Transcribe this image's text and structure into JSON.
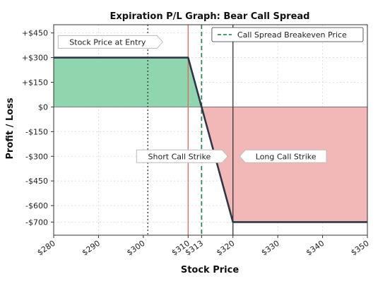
{
  "chart_data": {
    "type": "line",
    "title": "Expiration P/L Graph: Bear Call Spread",
    "xlabel": "Stock Price",
    "ylabel": "Profit / Loss",
    "xlim": [
      280,
      350
    ],
    "ylim": [
      -780,
      500
    ],
    "x_ticks": [
      {
        "value": 280,
        "label": "$280"
      },
      {
        "value": 290,
        "label": "$290"
      },
      {
        "value": 300,
        "label": "$300"
      },
      {
        "value": 310,
        "label": "$310"
      },
      {
        "value": 313,
        "label": "$313"
      },
      {
        "value": 320,
        "label": "$320"
      },
      {
        "value": 330,
        "label": "$330"
      },
      {
        "value": 340,
        "label": "$340"
      },
      {
        "value": 350,
        "label": "$350"
      }
    ],
    "y_ticks": [
      {
        "value": 450,
        "label": "+$450"
      },
      {
        "value": 300,
        "label": "+$300"
      },
      {
        "value": 150,
        "label": "+$150"
      },
      {
        "value": 0,
        "label": "$0"
      },
      {
        "value": -150,
        "label": "-$150"
      },
      {
        "value": -300,
        "label": "-$300"
      },
      {
        "value": -450,
        "label": "-$450"
      },
      {
        "value": -600,
        "label": "-$600"
      },
      {
        "value": -700,
        "label": "-$700"
      }
    ],
    "grid": true,
    "series": [
      {
        "x": [
          280,
          310,
          320,
          350
        ],
        "y": [
          300,
          300,
          -700,
          -700
        ],
        "color": "#2d3748"
      }
    ],
    "profit_fill_color": "#8fd6ae",
    "loss_fill_color": "#f2b8b8",
    "vertical_lines": [
      {
        "x": 301,
        "style": "dotted",
        "color": "#333333"
      },
      {
        "x": 310,
        "style": "solid",
        "color": "#e06666"
      },
      {
        "x": 313,
        "style": "dashed",
        "color": "#2e8b57"
      },
      {
        "x": 320,
        "style": "solid",
        "color": "#333333"
      }
    ],
    "annotations": [
      {
        "text": "Stock Price at Entry",
        "x": 281,
        "y": 395,
        "pointer": "right"
      },
      {
        "text": "Short Call Strike",
        "x": 298.5,
        "y": -300,
        "pointer": "right"
      },
      {
        "text": "Long Call Strike",
        "x": 321.5,
        "y": -300,
        "pointer": "left"
      }
    ],
    "legend": {
      "position": "top-right",
      "entries": [
        {
          "label": "Call Spread Breakeven Price",
          "color": "#2e8b57",
          "style": "dashed"
        }
      ]
    }
  }
}
